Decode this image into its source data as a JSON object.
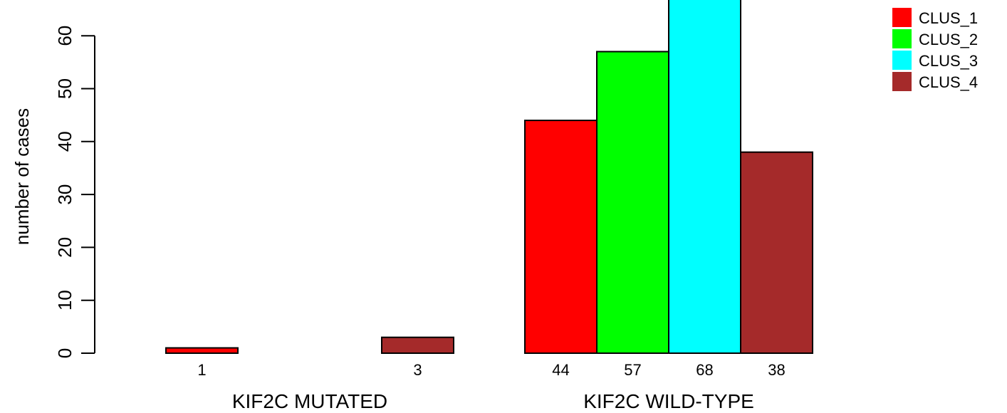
{
  "chart_data": {
    "type": "bar",
    "ylabel": "number of cases",
    "ylim": [
      0,
      70
    ],
    "yticks": [
      0,
      10,
      20,
      30,
      40,
      50,
      60
    ],
    "groups": [
      {
        "label": "KIF2C MUTATED",
        "values": [
          1,
          0,
          0,
          3
        ]
      },
      {
        "label": "KIF2C WILD-TYPE",
        "values": [
          44,
          57,
          68,
          38
        ]
      }
    ],
    "series": [
      {
        "name": "CLUS_1",
        "color": "#ff0000"
      },
      {
        "name": "CLUS_2",
        "color": "#00ff00"
      },
      {
        "name": "CLUS_3",
        "color": "#00ffff"
      },
      {
        "name": "CLUS_4",
        "color": "#a52a2a"
      }
    ],
    "legend_position": "top-right"
  }
}
